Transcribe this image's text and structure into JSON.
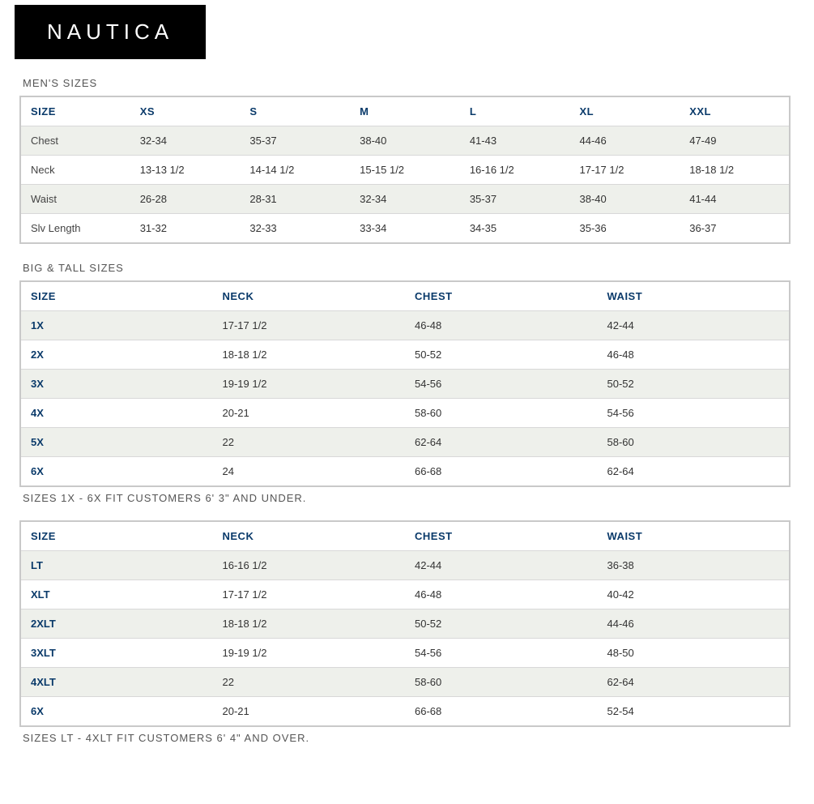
{
  "brand": "NAUTICA",
  "colors": {
    "logo_bg": "#000000",
    "logo_text": "#ffffff",
    "header_text": "#0a3a6a",
    "row_stripe": "#eef0eb",
    "row_plain": "#ffffff",
    "border": "#c9c9c9",
    "body_text": "#333333"
  },
  "sections": {
    "mens": {
      "title": "MEN'S SIZES",
      "headers": [
        "SIZE",
        "XS",
        "S",
        "M",
        "L",
        "XL",
        "XXL"
      ],
      "rows": [
        [
          "Chest",
          "32-34",
          "35-37",
          "38-40",
          "41-43",
          "44-46",
          "47-49"
        ],
        [
          "Neck",
          "13-13 1/2",
          "14-14 1/2",
          "15-15 1/2",
          "16-16 1/2",
          "17-17 1/2",
          "18-18 1/2"
        ],
        [
          "Waist",
          "26-28",
          "28-31",
          "32-34",
          "35-37",
          "38-40",
          "41-44"
        ],
        [
          "Slv Length",
          "31-32",
          "32-33",
          "33-34",
          "34-35",
          "35-36",
          "36-37"
        ]
      ]
    },
    "bigtall": {
      "title": "BIG & TALL SIZES",
      "headers": [
        "SIZE",
        "NECK",
        "CHEST",
        "WAIST"
      ],
      "rows": [
        [
          "1X",
          "17-17 1/2",
          "46-48",
          "42-44"
        ],
        [
          "2X",
          "18-18 1/2",
          "50-52",
          "46-48"
        ],
        [
          "3X",
          "19-19 1/2",
          "54-56",
          "50-52"
        ],
        [
          "4X",
          "20-21",
          "58-60",
          "54-56"
        ],
        [
          "5X",
          "22",
          "62-64",
          "58-60"
        ],
        [
          "6X",
          "24",
          "66-68",
          "62-64"
        ]
      ],
      "note": "SIZES 1X - 6X FIT CUSTOMERS 6' 3\" AND UNDER."
    },
    "tall": {
      "headers": [
        "SIZE",
        "NECK",
        "CHEST",
        "WAIST"
      ],
      "rows": [
        [
          "LT",
          "16-16 1/2",
          "42-44",
          "36-38"
        ],
        [
          "XLT",
          "17-17 1/2",
          "46-48",
          "40-42"
        ],
        [
          "2XLT",
          "18-18 1/2",
          "50-52",
          "44-46"
        ],
        [
          "3XLT",
          "19-19 1/2",
          "54-56",
          "48-50"
        ],
        [
          "4XLT",
          "22",
          "58-60",
          "62-64"
        ],
        [
          "6X",
          "20-21",
          "66-68",
          "52-54"
        ]
      ],
      "note": "SIZES LT - 4XLT FIT CUSTOMERS 6' 4\" AND OVER."
    }
  }
}
